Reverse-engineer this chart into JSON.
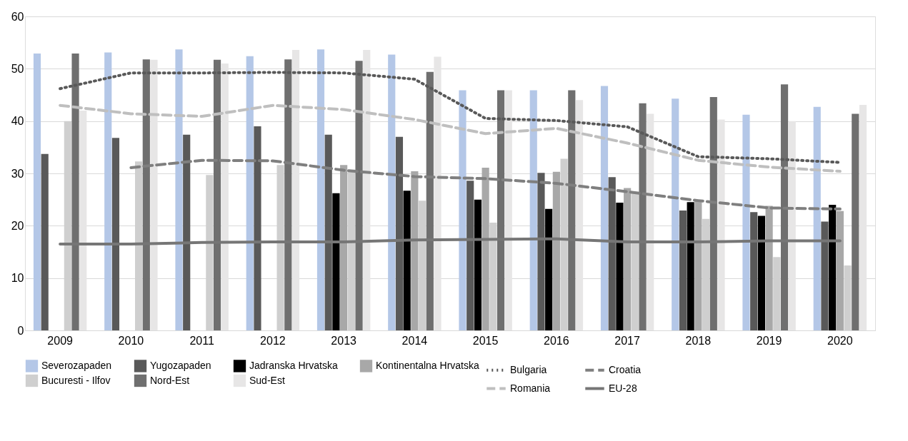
{
  "chart_data": {
    "type": "bar",
    "categories": [
      "2009",
      "2010",
      "2011",
      "2012",
      "2013",
      "2014",
      "2015",
      "2016",
      "2017",
      "2018",
      "2019",
      "2020"
    ],
    "ylim": [
      0,
      60
    ],
    "yticks": [
      0,
      10,
      20,
      30,
      40,
      50,
      60
    ],
    "grid": "y",
    "legend": "bottom",
    "series": [
      {
        "name": "Severozapaden",
        "color": "#b4c7e7",
        "values": [
          52.9,
          53.1,
          53.7,
          52.4,
          53.7,
          52.7,
          45.9,
          45.9,
          46.7,
          44.3,
          41.2,
          42.7
        ]
      },
      {
        "name": "Yugozapaden",
        "color": "#595959",
        "values": [
          33.7,
          36.8,
          37.4,
          39.0,
          37.4,
          37.0,
          28.6,
          30.1,
          29.3,
          22.9,
          22.6,
          20.8
        ]
      },
      {
        "name": "Jadranska Hrvatska",
        "color": "#000000",
        "values": [
          null,
          null,
          null,
          null,
          26.2,
          26.7,
          25.0,
          23.2,
          24.4,
          24.5,
          21.9,
          24.0
        ]
      },
      {
        "name": "Kontinentalna Hrvatska",
        "color": "#a8a8a8",
        "values": [
          null,
          null,
          null,
          null,
          31.6,
          30.4,
          31.1,
          30.3,
          27.2,
          24.8,
          23.8,
          22.8
        ]
      },
      {
        "name": "Bucuresti - Ilfov",
        "color": "#cfcfcf",
        "values": [
          40.0,
          32.3,
          29.7,
          31.6,
          30.7,
          24.8,
          20.6,
          32.8,
          26.5,
          21.3,
          14.0,
          12.4
        ]
      },
      {
        "name": "Nord-Est",
        "color": "#6f6f6f",
        "values": [
          52.9,
          51.8,
          51.7,
          51.8,
          51.5,
          49.4,
          45.9,
          45.9,
          43.4,
          44.6,
          47.0,
          41.4
        ]
      },
      {
        "name": "Sud-Est",
        "color": "#e7e6e6",
        "values": [
          42.0,
          51.7,
          51.0,
          53.6,
          53.6,
          52.3,
          45.9,
          44.0,
          41.4,
          40.3,
          40.0,
          43.1
        ]
      },
      {
        "name": "Bulgaria",
        "type": "line",
        "line_style": "dotted",
        "color": "#595959",
        "values": [
          46.2,
          49.2,
          49.2,
          49.3,
          49.2,
          48.0,
          40.5,
          40.1,
          38.9,
          33.2,
          32.8,
          32.1
        ]
      },
      {
        "name": "Croatia",
        "type": "line",
        "line_style": "dashed",
        "color": "#7f7f7f",
        "values": [
          null,
          31.1,
          32.5,
          32.4,
          30.6,
          29.4,
          29.0,
          28.1,
          26.5,
          24.8,
          23.4,
          23.2
        ]
      },
      {
        "name": "Romania",
        "type": "line",
        "line_style": "dashed",
        "color": "#bfbfbf",
        "values": [
          43.0,
          41.4,
          40.9,
          43.0,
          42.2,
          40.3,
          37.6,
          38.6,
          35.8,
          32.5,
          31.2,
          30.4
        ]
      },
      {
        "name": "EU-28",
        "type": "line",
        "line_style": "solid",
        "color": "#767676",
        "values": [
          16.5,
          16.5,
          16.8,
          16.9,
          16.9,
          17.3,
          17.4,
          17.5,
          16.9,
          16.9,
          17.1,
          17.1
        ]
      }
    ]
  }
}
